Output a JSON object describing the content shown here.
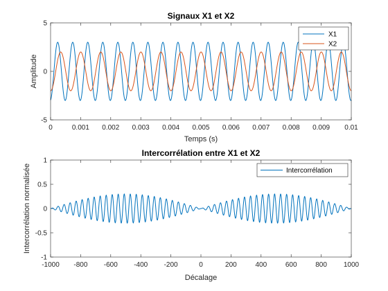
{
  "chart_data": [
    {
      "type": "line",
      "title": "Signaux X1 et X2",
      "xlabel": "Temps (s)",
      "ylabel": "Amplitude",
      "xlim": [
        0,
        0.01
      ],
      "ylim": [
        -5,
        5
      ],
      "xticks": [
        0,
        0.001,
        0.002,
        0.003,
        0.004,
        0.005,
        0.006,
        0.007,
        0.008,
        0.009,
        0.01
      ],
      "xtick_labels": [
        "0",
        "0.001",
        "0.002",
        "0.003",
        "0.004",
        "0.005",
        "0.006",
        "0.007",
        "0.008",
        "0.009",
        "0.01"
      ],
      "yticks": [
        -5,
        0,
        5
      ],
      "ytick_labels": [
        "-5",
        "0",
        "5"
      ],
      "legend_position": "top-right",
      "series": [
        {
          "name": "X1",
          "color": "#0072BD",
          "amplitude": 3,
          "frequency_hz": 2000,
          "phase_rad": -1.4
        },
        {
          "name": "X2",
          "color": "#D95319",
          "amplitude": 2,
          "frequency_hz": 1500,
          "phase_rad": -1.6
        }
      ]
    },
    {
      "type": "line",
      "title": "Intercorrélation entre X1 et X2",
      "xlabel": "Décalage",
      "ylabel": "Intercorrélation normalisée",
      "xlim": [
        -1000,
        1000
      ],
      "ylim": [
        -1,
        1
      ],
      "xticks": [
        -1000,
        -800,
        -600,
        -400,
        -200,
        0,
        200,
        400,
        600,
        800,
        1000
      ],
      "xtick_labels": [
        "-1000",
        "-800",
        "-600",
        "-400",
        "-200",
        "0",
        "200",
        "400",
        "600",
        "800",
        "1000"
      ],
      "yticks": [
        -1,
        -0.5,
        0,
        0.5,
        1
      ],
      "ytick_labels": [
        "-1",
        "-0.5",
        "0",
        "0.5",
        "1"
      ],
      "legend_position": "top-right",
      "series": [
        {
          "name": "Intercorrélation",
          "color": "#0072BD",
          "envelope_peak": 0.3,
          "envelope_peak_lags": [
            -500,
            500
          ],
          "envelope_null_lags": [
            -1000,
            0,
            1000
          ],
          "oscillation_period_lag": 40
        }
      ]
    }
  ]
}
